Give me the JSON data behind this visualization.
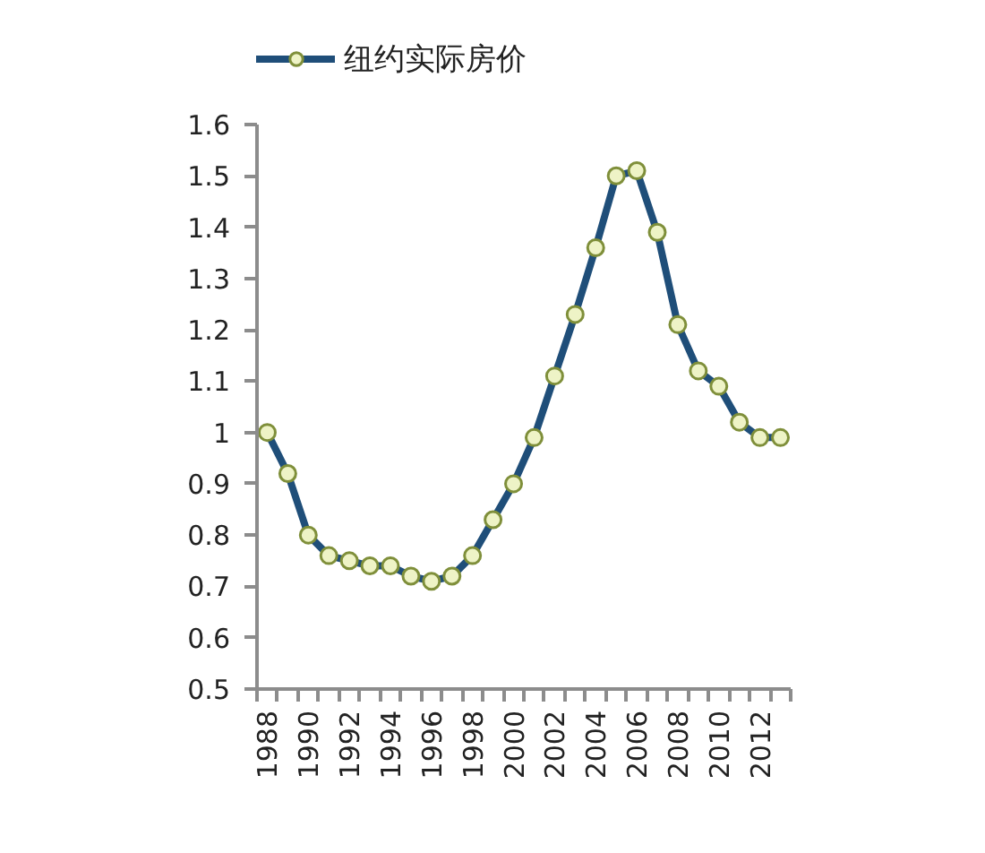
{
  "chart_data": {
    "type": "line",
    "categories": [
      "1988",
      null,
      "1990",
      null,
      "1992",
      null,
      "1994",
      null,
      "1996",
      null,
      "1998",
      null,
      "2000",
      null,
      "2002",
      null,
      "2004",
      null,
      "2006",
      null,
      "2008",
      null,
      "2010",
      null,
      "2012",
      null
    ],
    "series": [
      {
        "name": "纽约实际房价",
        "color": "#1f4e79",
        "values": [
          1.0,
          0.92,
          0.8,
          0.76,
          0.75,
          0.74,
          0.74,
          0.72,
          0.71,
          0.72,
          0.76,
          0.83,
          0.9,
          0.99,
          1.11,
          1.23,
          1.36,
          1.5,
          1.51,
          1.39,
          1.21,
          1.12,
          1.09,
          1.02,
          0.99,
          0.99
        ]
      }
    ],
    "ylim": [
      0.5,
      1.6
    ],
    "yticks": [
      0.5,
      0.6,
      0.7,
      0.8,
      0.9,
      1,
      1.1,
      1.2,
      1.3,
      1.4,
      1.5,
      1.6
    ],
    "legend": "top",
    "marker": "circle",
    "line_style": "solid"
  }
}
